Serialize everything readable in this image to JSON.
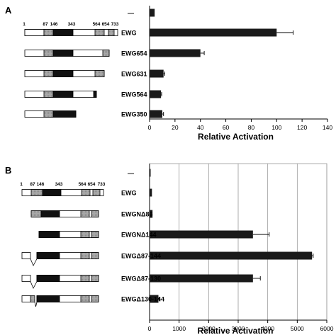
{
  "chart_data": [
    {
      "type": "bar",
      "orientation": "horizontal",
      "panel": "A",
      "categories": [
        "—",
        "EWG",
        "EWG654",
        "EWG631",
        "EWG564",
        "EWG350"
      ],
      "values": [
        4,
        100,
        40,
        11,
        9,
        10
      ],
      "errors": [
        0,
        13,
        3,
        1,
        0.5,
        1
      ],
      "xlabel": "Relative Activation",
      "xlim": [
        0,
        140
      ],
      "xticks": [
        0,
        20,
        40,
        60,
        80,
        100,
        120,
        140
      ],
      "grid": false,
      "bar_color": "#1a1a1a",
      "domain_positions": [
        "1",
        "87",
        "146",
        "343",
        "564",
        "654",
        "733"
      ]
    },
    {
      "type": "bar",
      "orientation": "horizontal",
      "panel": "B",
      "categories": [
        "—",
        "EWG",
        "EWGNΔ86",
        "EWGNΔ144",
        "EWGΔ87-144",
        "EWGΔ87-130",
        "EWGΔ130-144"
      ],
      "values": [
        25,
        80,
        100,
        3500,
        5500,
        3500,
        300
      ],
      "errors": [
        0,
        0,
        0,
        550,
        40,
        250,
        30
      ],
      "xlabel": "Relative Activation",
      "xlim": [
        0,
        6000
      ],
      "xticks": [
        0,
        1000,
        2000,
        3000,
        4000,
        5000,
        6000
      ],
      "grid": true,
      "bar_color": "#1a1a1a",
      "domain_positions": [
        "1",
        "87",
        "146",
        "343",
        "564",
        "654",
        "733"
      ]
    }
  ]
}
